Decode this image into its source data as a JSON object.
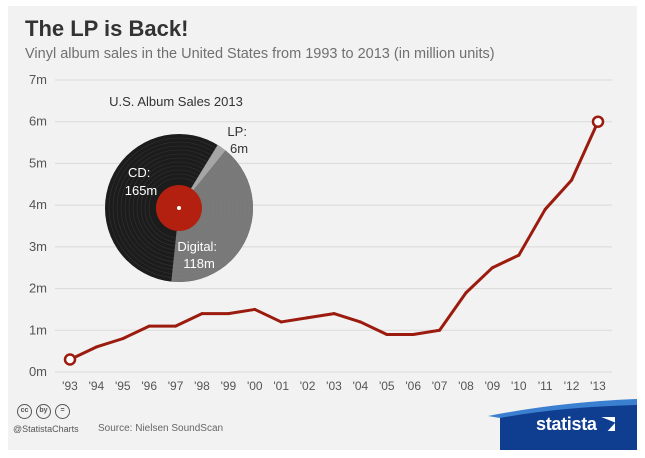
{
  "header": {
    "title": "The LP is Back!",
    "subtitle": "Vinyl album sales in the United States from 1993 to 2013 (in million units)"
  },
  "inset": {
    "title": "U.S. Album Sales 2013",
    "segments": [
      {
        "label_line1": "CD:",
        "label_line2": "165m",
        "value": 165
      },
      {
        "label_line1": "Digital:",
        "label_line2": "118m",
        "value": 118
      },
      {
        "label_line1": "LP:",
        "label_line2": "6m",
        "value": 6
      }
    ]
  },
  "chart_data": {
    "type": "line",
    "title": "The LP is Back!",
    "subtitle": "Vinyl album sales in the United States from 1993 to 2013 (in million units)",
    "categories": [
      "'93",
      "'94",
      "'95",
      "'96",
      "'97",
      "'98",
      "'99",
      "'00",
      "'01",
      "'02",
      "'03",
      "'04",
      "'05",
      "'06",
      "'07",
      "'08",
      "'09",
      "'10",
      "'11",
      "'12",
      "'13"
    ],
    "values": [
      0.3,
      0.6,
      0.8,
      1.1,
      1.1,
      1.4,
      1.4,
      1.5,
      1.2,
      1.3,
      1.4,
      1.2,
      0.9,
      0.9,
      1.0,
      1.9,
      2.5,
      2.8,
      3.9,
      4.6,
      6.0
    ],
    "ylim": [
      0,
      7
    ],
    "yticks": [
      0,
      1,
      2,
      3,
      4,
      5,
      6,
      7
    ],
    "ytick_labels": [
      "0m",
      "1m",
      "2m",
      "3m",
      "4m",
      "5m",
      "6m",
      "7m"
    ],
    "grid": true,
    "line_color": "#9b1c0e",
    "highlight_points": [
      0,
      20
    ]
  },
  "footer": {
    "cc_icons": [
      "cc",
      "by",
      "="
    ],
    "handle": "@StatistaCharts",
    "source": "Source: Nielsen SoundScan",
    "brand": "statista"
  },
  "colors": {
    "background": "#f2f2f2",
    "line": "#9b1c0e",
    "label_red": "#c0392b",
    "brand_blue": "#0f3d8f"
  }
}
